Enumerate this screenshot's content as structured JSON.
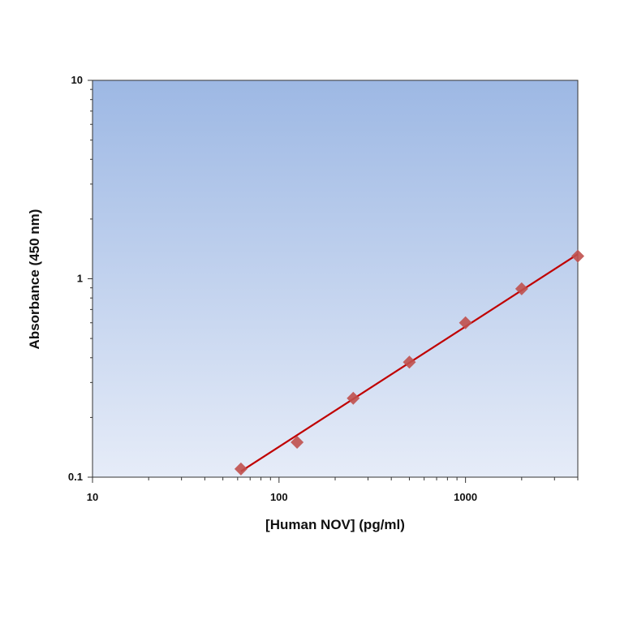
{
  "chart_data": {
    "type": "scatter",
    "title": "",
    "xlabel": "[Human NOV] (pg/ml)",
    "ylabel": "Absorbance (450 nm)",
    "x_scale": "log",
    "y_scale": "log",
    "xlim": [
      10,
      4000
    ],
    "ylim": [
      0.1,
      10
    ],
    "x_ticks": [
      10,
      100,
      1000
    ],
    "x_tick_labels": [
      "10",
      "100",
      "1000"
    ],
    "y_ticks": [
      0.1,
      1,
      10
    ],
    "y_tick_labels": [
      "0.1",
      "1",
      "10"
    ],
    "grid": false,
    "legend": "none",
    "series": [
      {
        "x": [
          62.5,
          125,
          250,
          500,
          1000,
          2000,
          4000
        ],
        "y": [
          0.11,
          0.15,
          0.25,
          0.38,
          0.6,
          0.89,
          1.3
        ]
      }
    ],
    "fit_line": {
      "x": [
        62.5,
        4000
      ],
      "y": [
        0.107,
        1.33
      ]
    },
    "colors": {
      "plot_bg_top": "#9db8e4",
      "plot_bg_bottom": "#e6ecf8",
      "marker": "#c0504d",
      "line": "#c00000",
      "axis": "#333333"
    }
  }
}
